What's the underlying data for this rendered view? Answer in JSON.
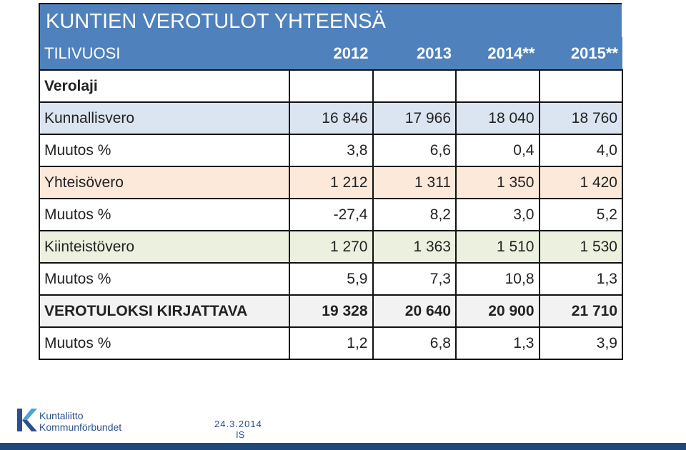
{
  "title": "KUNTIEN VEROTULOT  YHTEENSÄ",
  "header": {
    "label": "TILIVUOSI",
    "years": [
      "2012",
      "2013",
      "2014**",
      "2015**"
    ]
  },
  "rows": [
    {
      "label": "Verolaji",
      "values": [
        "",
        "",
        "",
        ""
      ]
    },
    {
      "label": "Kunnallisvero",
      "values": [
        "16 846",
        "17 966",
        "18 040",
        "18 760"
      ]
    },
    {
      "label": "Muutos %",
      "values": [
        "3,8",
        "6,6",
        "0,4",
        "4,0"
      ]
    },
    {
      "label": "Yhteisövero",
      "values": [
        "1 212",
        "1 311",
        "1 350",
        "1 420"
      ]
    },
    {
      "label": "Muutos %",
      "values": [
        "-27,4",
        "8,2",
        "3,0",
        "5,2"
      ]
    },
    {
      "label": "Kiinteistövero",
      "values": [
        "1 270",
        "1 363",
        "1 510",
        "1 530"
      ]
    },
    {
      "label": "Muutos %",
      "values": [
        "5,9",
        "7,3",
        "10,8",
        "1,3"
      ]
    },
    {
      "label": "VEROTULOKSI KIRJATTAVA",
      "values": [
        "19 328",
        "20 640",
        "20 900",
        "21 710"
      ]
    },
    {
      "label": "Muutos %",
      "values": [
        "1,2",
        "6,8",
        "1,3",
        "3,9"
      ]
    }
  ],
  "footer": {
    "logo_line1": "Kuntaliitto",
    "logo_line2": "Kommunförbundet",
    "date": "24.3.2014",
    "initials": "IS"
  },
  "colors": {
    "header_blue": "#4f81bd",
    "footer_blue": "#1f497d"
  }
}
